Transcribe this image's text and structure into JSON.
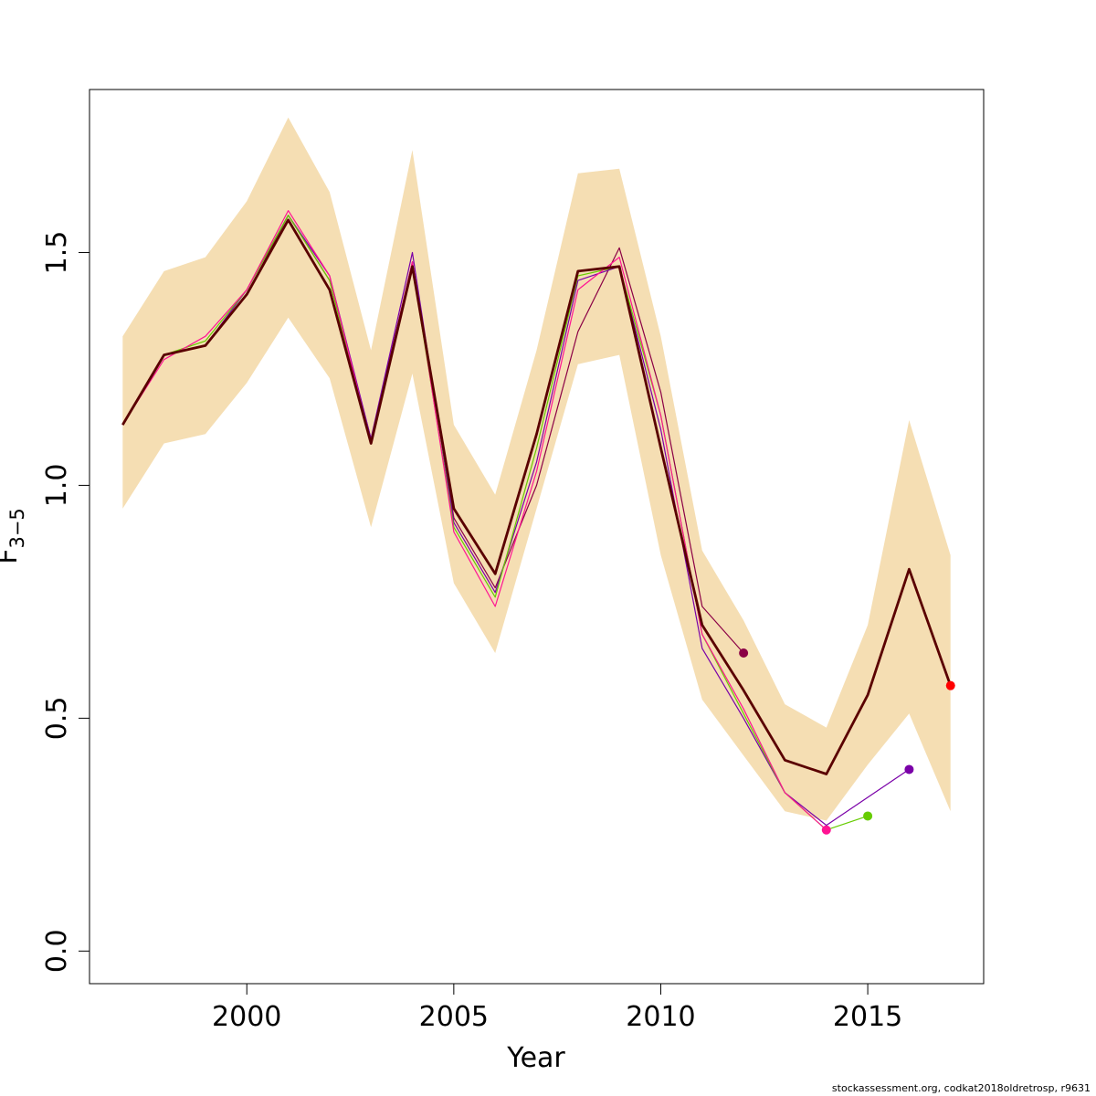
{
  "chart_data": {
    "type": "line",
    "xlabel": "Year",
    "ylabel": {
      "main": "F",
      "sub": "3−5"
    },
    "xlim": [
      1996.2,
      2017.8
    ],
    "ylim": [
      -0.07,
      1.85
    ],
    "x_ticks": [
      2000,
      2005,
      2010,
      2015
    ],
    "y_ticks": [
      0.0,
      0.5,
      1.0,
      1.5
    ],
    "y_tick_labels": [
      "0.0",
      "0.5",
      "1.0",
      "1.5"
    ],
    "grid": false,
    "confidence_band": {
      "color": "#f5deb3",
      "x": [
        1997,
        1998,
        1999,
        2000,
        2001,
        2002,
        2003,
        2004,
        2005,
        2006,
        2007,
        2008,
        2009,
        2010,
        2011,
        2012,
        2013,
        2014,
        2015,
        2016,
        2017
      ],
      "lower": [
        0.95,
        1.09,
        1.11,
        1.22,
        1.36,
        1.23,
        0.91,
        1.24,
        0.79,
        0.64,
        0.95,
        1.26,
        1.28,
        0.85,
        0.54,
        0.42,
        0.3,
        0.28,
        0.4,
        0.51,
        0.3
      ],
      "upper": [
        1.32,
        1.46,
        1.49,
        1.61,
        1.79,
        1.63,
        1.29,
        1.72,
        1.13,
        0.98,
        1.29,
        1.67,
        1.68,
        1.32,
        0.86,
        0.71,
        0.53,
        0.48,
        0.7,
        1.14,
        0.85
      ]
    },
    "series": [
      {
        "color": "#8b0045",
        "width": 1.2,
        "end_point": true,
        "x": [
          1997,
          1998,
          1999,
          2000,
          2001,
          2002,
          2003,
          2004,
          2005,
          2006,
          2007,
          2008,
          2009,
          2010,
          2011,
          2012
        ],
        "values": [
          1.13,
          1.28,
          1.3,
          1.41,
          1.58,
          1.44,
          1.1,
          1.48,
          0.93,
          0.78,
          1.0,
          1.33,
          1.51,
          1.2,
          0.74,
          0.64
        ]
      },
      {
        "color": "#7a00a8",
        "width": 1.2,
        "end_point": true,
        "x": [
          1997,
          1998,
          1999,
          2000,
          2001,
          2002,
          2003,
          2004,
          2005,
          2006,
          2007,
          2008,
          2009,
          2010,
          2011,
          2012,
          2013,
          2014,
          2016
        ],
        "values": [
          1.13,
          1.28,
          1.3,
          1.42,
          1.58,
          1.45,
          1.1,
          1.5,
          0.92,
          0.77,
          1.05,
          1.44,
          1.47,
          1.12,
          0.65,
          0.5,
          0.34,
          0.27,
          0.39
        ]
      },
      {
        "color": "#66cc00",
        "width": 1.2,
        "end_point": true,
        "x": [
          1997,
          1998,
          1999,
          2000,
          2001,
          2002,
          2003,
          2004,
          2005,
          2006,
          2007,
          2008,
          2009,
          2010,
          2011,
          2012,
          2013,
          2014,
          2015
        ],
        "values": [
          1.13,
          1.28,
          1.31,
          1.42,
          1.58,
          1.44,
          1.09,
          1.47,
          0.91,
          0.76,
          1.08,
          1.45,
          1.47,
          1.15,
          0.68,
          0.51,
          0.34,
          0.26,
          0.29
        ]
      },
      {
        "color": "#ff1493",
        "width": 1.2,
        "end_point": true,
        "x": [
          1997,
          1998,
          1999,
          2000,
          2001,
          2002,
          2003,
          2004,
          2005,
          2006,
          2007,
          2008,
          2009,
          2010,
          2011,
          2012,
          2013,
          2014
        ],
        "values": [
          1.13,
          1.27,
          1.32,
          1.42,
          1.59,
          1.45,
          1.09,
          1.48,
          0.9,
          0.74,
          1.03,
          1.42,
          1.49,
          1.15,
          0.68,
          0.52,
          0.34,
          0.26
        ]
      },
      {
        "color": "#5a0000",
        "width": 2.8,
        "end_point": true,
        "end_point_color": "#ff0000",
        "x": [
          1997,
          1998,
          1999,
          2000,
          2001,
          2002,
          2003,
          2004,
          2005,
          2006,
          2007,
          2008,
          2009,
          2010,
          2011,
          2012,
          2013,
          2014,
          2015,
          2016,
          2017
        ],
        "values": [
          1.13,
          1.28,
          1.3,
          1.41,
          1.57,
          1.42,
          1.09,
          1.47,
          0.95,
          0.81,
          1.11,
          1.46,
          1.47,
          1.08,
          0.7,
          0.56,
          0.41,
          0.38,
          0.55,
          0.82,
          0.57
        ]
      }
    ]
  },
  "footer": "stockassessment.org, codkat2018oldretrosp, r9631"
}
